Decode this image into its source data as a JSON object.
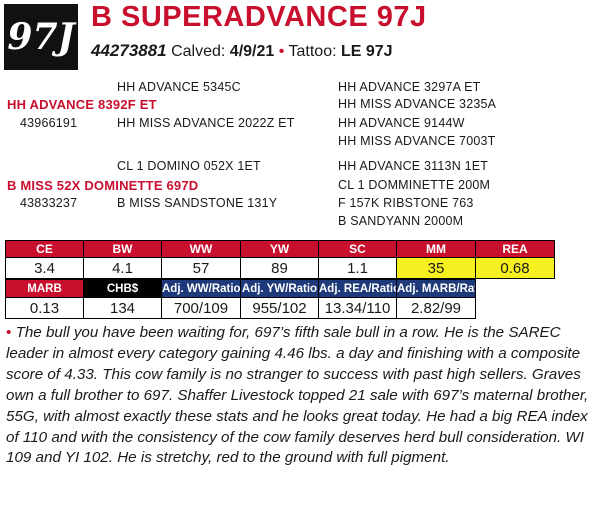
{
  "header": {
    "lot": "97J",
    "name": "B SUPERADVANCE 97J",
    "registration": "44273881",
    "calved_label": "Calved:",
    "calved_date": "4/9/21",
    "bullet": "•",
    "tattoo_label": "Tattoo:",
    "tattoo": "LE 97J"
  },
  "pedigree": {
    "sire": {
      "name": "HH ADVANCE 8392F ET",
      "reg": "43966191"
    },
    "sire_sire": "HH ADVANCE 5345C",
    "sire_dam": "HH MISS ADVANCE 2022Z ET",
    "sire_sire_sire": "HH ADVANCE 3297A ET",
    "sire_sire_dam": "HH MISS ADVANCE 3235A",
    "sire_dam_sire": "HH ADVANCE 9144W",
    "sire_dam_dam": "HH MISS ADVANCE 7003T",
    "dam": {
      "name": "B MISS 52X DOMINETTE 697D",
      "reg": "43833237"
    },
    "dam_sire": "CL 1 DOMINO 052X 1ET",
    "dam_dam": "B MISS SANDSTONE 131Y",
    "dam_sire_sire": "HH ADVANCE 3113N 1ET",
    "dam_sire_dam": "CL 1 DOMMINETTE 200M",
    "dam_dam_sire": "F 157K RIBSTONE 763",
    "dam_dam_dam": "B SANDYANN 2000M"
  },
  "epd_row1": {
    "headers": [
      "CE",
      "BW",
      "WW",
      "YW",
      "SC",
      "MM",
      "REA"
    ],
    "values": [
      "3.4",
      "4.1",
      "57",
      "89",
      "1.1",
      "35",
      "0.68"
    ]
  },
  "epd_row2": {
    "headers": [
      "MARB",
      "CHB$",
      "Adj. WW/Ratio",
      "Adj. YW/Ratio",
      "Adj. REA/Ratio",
      "Adj. MARB/Ratio"
    ],
    "values": [
      "0.13",
      "134",
      "700/109",
      "955/102",
      "13.34/110",
      "2.82/99"
    ]
  },
  "colors": {
    "accent_red": "#c8102e",
    "highlight_yellow": "#f7f020",
    "navy": "#1f3a7a"
  },
  "notes": {
    "bullet": "•",
    "text": "The bull you have been waiting for, 697’s fifth sale bull in a row. He is the SAREC leader in almost every category gaining 4.46 lbs. a day and finishing with a composite score of 4.33. This cow family is no stranger to success with past high sellers. Graves own a full brother to 697. Shaffer Livestock topped 21 sale with 697’s maternal brother, 55G, with almost exactly these stats and he looks great today. He had a big REA index of 110 and with the consistency of the cow family deserves herd bull consideration. WI 109 and YI 102. He is stretchy, red to the ground with full pigment."
  }
}
